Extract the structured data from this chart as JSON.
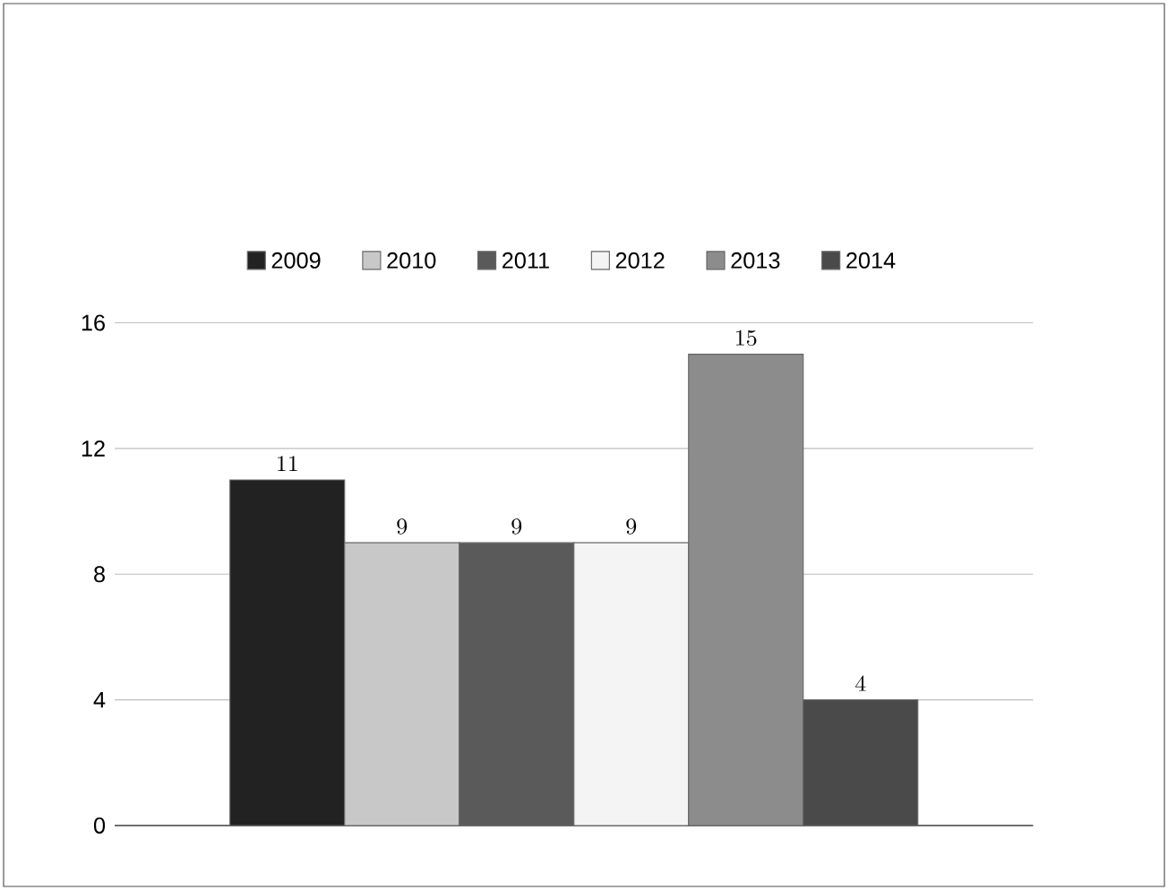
{
  "chart_data": {
    "type": "bar",
    "categories": [
      null
    ],
    "series": [
      {
        "name": "2009",
        "color": "#222222",
        "values": [
          11
        ]
      },
      {
        "name": "2010",
        "color": "#c8c8c8",
        "values": [
          9
        ]
      },
      {
        "name": "2011",
        "color": "#5a5a5a",
        "values": [
          9
        ]
      },
      {
        "name": "2012",
        "color": "#f4f4f4",
        "values": [
          9
        ]
      },
      {
        "name": "2013",
        "color": "#8c8c8c",
        "values": [
          15
        ]
      },
      {
        "name": "2014",
        "color": "#4a4a4a",
        "values": [
          4
        ]
      }
    ],
    "ylim": [
      0,
      16
    ],
    "yticks": [
      0,
      4,
      8,
      12,
      16
    ],
    "grid": "y",
    "legend": "top",
    "data_labels": true
  }
}
